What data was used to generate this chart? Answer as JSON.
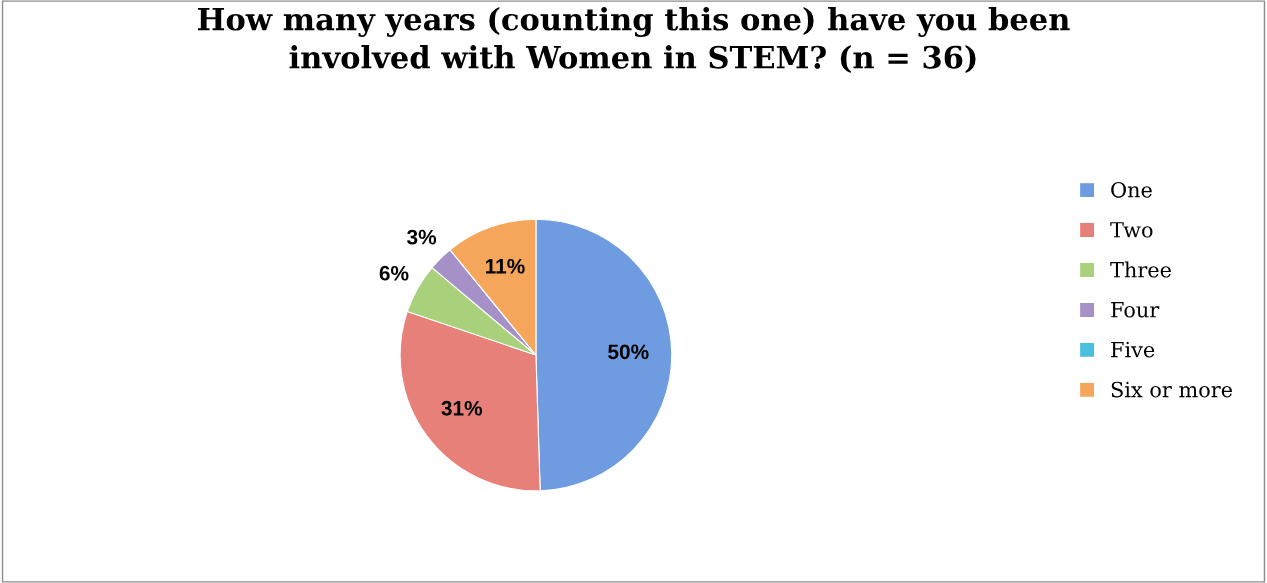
{
  "chart_data": {
    "type": "pie",
    "title": "How many years (counting this one) have you been\ninvolved with Women in STEM? (n = 36)",
    "categories": [
      "One",
      "Two",
      "Three",
      "Four",
      "Five",
      "Six or more"
    ],
    "values": [
      50,
      31,
      6,
      3,
      0,
      11
    ],
    "colors": [
      "#6f9be0",
      "#e8807a",
      "#a9d07a",
      "#a590c8",
      "#4bc0dc",
      "#f5a65b"
    ],
    "value_labels": [
      "50%",
      "31%",
      "6%",
      "3%",
      null,
      "11%"
    ],
    "legend": "right"
  }
}
